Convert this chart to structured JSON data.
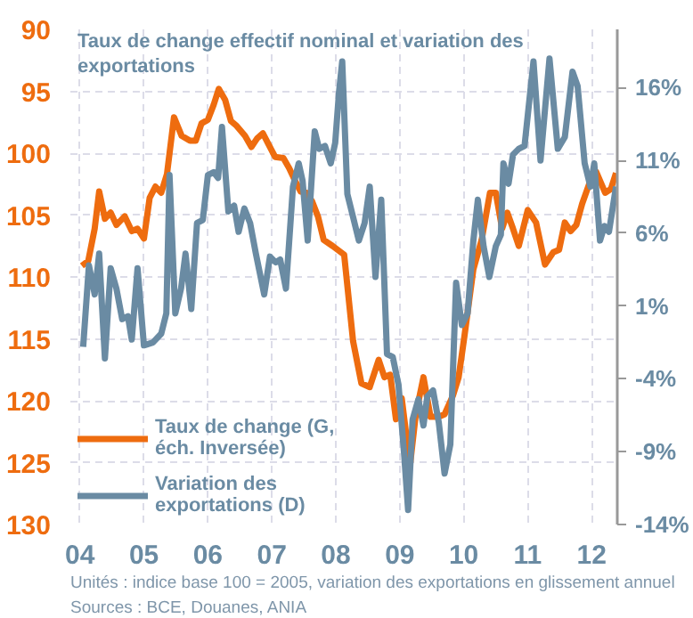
{
  "chart_data": {
    "type": "line",
    "title": "Taux de change effectif nominal et variation des exportations",
    "xlim": [
      2003.85,
      2012.4
    ],
    "xticks": [
      {
        "value": 2004,
        "label": "04"
      },
      {
        "value": 2005,
        "label": "05"
      },
      {
        "value": 2006,
        "label": "06"
      },
      {
        "value": 2007,
        "label": "07"
      },
      {
        "value": 2008,
        "label": "08"
      },
      {
        "value": 2009,
        "label": "09"
      },
      {
        "value": 2010,
        "label": "10"
      },
      {
        "value": 2011,
        "label": "11"
      },
      {
        "value": 2012,
        "label": "12"
      }
    ],
    "ylim": [
      130,
      90
    ],
    "yticks": [
      90,
      95,
      100,
      105,
      110,
      115,
      120,
      125,
      130
    ],
    "y2lim": [
      -14,
      20
    ],
    "y2ticks": [
      {
        "value": -14,
        "label": "-14%"
      },
      {
        "value": -9,
        "label": "-9%"
      },
      {
        "value": -4,
        "label": "-4%"
      },
      {
        "value": 1,
        "label": "1%"
      },
      {
        "value": 6,
        "label": "6%"
      },
      {
        "value": 11,
        "label": "11%"
      },
      {
        "value": 16,
        "label": "16%"
      }
    ],
    "grid": true,
    "legend": "bottom left",
    "series": [
      {
        "name": "Taux de change (G, éch. Inversée)",
        "color": "#ee6c0f",
        "x": [
          2004.03,
          2004.13,
          2004.23,
          2004.3,
          2004.39,
          2004.48,
          2004.57,
          2004.7,
          2004.81,
          2004.9,
          2005.0,
          2005.09,
          2005.18,
          2005.27,
          2005.36,
          2005.47,
          2005.59,
          2005.72,
          2005.81,
          2005.9,
          2006.0,
          2006.09,
          2006.17,
          2006.27,
          2006.36,
          2006.45,
          2006.58,
          2006.68,
          2006.77,
          2006.86,
          2006.95,
          2007.05,
          2007.18,
          2007.27,
          2007.36,
          2007.45,
          2007.54,
          2007.63,
          2007.72,
          2007.81,
          2007.95,
          2008.13,
          2008.27,
          2008.4,
          2008.53,
          2008.67,
          2008.76,
          2008.85,
          2008.94,
          2009.03,
          2009.16,
          2009.25,
          2009.37,
          2009.48,
          2009.61,
          2009.7,
          2009.83,
          2009.92,
          2010.01,
          2010.15,
          2010.28,
          2010.41,
          2010.5,
          2010.6,
          2010.68,
          2010.77,
          2010.86,
          2011.0,
          2011.13,
          2011.27,
          2011.4,
          2011.49,
          2011.58,
          2011.67,
          2011.76,
          2011.85,
          2011.98,
          2012.07,
          2012.21,
          2012.3,
          2012.38
        ],
        "values": [
          109.1,
          108.7,
          106.1,
          103.1,
          105.3,
          104.8,
          105.8,
          105.1,
          106.3,
          106.1,
          106.9,
          103.6,
          102.7,
          103.2,
          101.7,
          97.1,
          98.6,
          99.0,
          99.0,
          97.6,
          97.3,
          96.1,
          94.8,
          95.7,
          97.4,
          97.8,
          98.6,
          99.5,
          98.8,
          98.4,
          99.3,
          100.3,
          100.4,
          101.2,
          102.2,
          103.1,
          103.2,
          103.9,
          105.1,
          107.0,
          107.5,
          108.2,
          115.2,
          118.6,
          118.9,
          116.7,
          118.1,
          117.9,
          121.5,
          119.8,
          125.2,
          121.1,
          118.1,
          121.3,
          121.3,
          121.1,
          119.6,
          118.1,
          114.8,
          109.4,
          107.0,
          103.2,
          103.2,
          106.1,
          104.8,
          106.1,
          107.5,
          104.6,
          105.6,
          109.0,
          108.0,
          107.8,
          105.6,
          106.3,
          105.8,
          104.1,
          102.2,
          101.5,
          103.2,
          102.9,
          101.6
        ]
      },
      {
        "name": "Variation des exportations (D)",
        "color": "#6a8ba3",
        "axis": "y2",
        "x": [
          2004.05,
          2004.14,
          2004.23,
          2004.3,
          2004.39,
          2004.48,
          2004.57,
          2004.66,
          2004.75,
          2004.81,
          2004.9,
          2005.0,
          2005.14,
          2005.27,
          2005.35,
          2005.4,
          2005.49,
          2005.58,
          2005.65,
          2005.74,
          2005.83,
          2005.92,
          2006.0,
          2006.09,
          2006.16,
          2006.22,
          2006.32,
          2006.41,
          2006.48,
          2006.57,
          2006.66,
          2006.75,
          2006.88,
          2006.97,
          2007.06,
          2007.13,
          2007.22,
          2007.33,
          2007.42,
          2007.48,
          2007.56,
          2007.67,
          2007.74,
          2007.83,
          2007.92,
          2007.99,
          2008.05,
          2008.1,
          2008.18,
          2008.27,
          2008.36,
          2008.45,
          2008.53,
          2008.62,
          2008.71,
          2008.8,
          2008.89,
          2008.98,
          2009.07,
          2009.13,
          2009.2,
          2009.29,
          2009.37,
          2009.43,
          2009.52,
          2009.61,
          2009.7,
          2009.79,
          2009.88,
          2009.97,
          2010.06,
          2010.15,
          2010.22,
          2010.31,
          2010.4,
          2010.5,
          2010.58,
          2010.62,
          2010.7,
          2010.77,
          2010.86,
          2010.95,
          2011.09,
          2011.2,
          2011.34,
          2011.47,
          2011.58,
          2011.7,
          2011.78,
          2011.89,
          2011.98,
          2012.04,
          2012.13,
          2012.2,
          2012.27,
          2012.38
        ],
        "values": [
          -1.8,
          3.8,
          1.8,
          4.6,
          -2.6,
          3.6,
          2.2,
          0.1,
          0.3,
          -1.3,
          3.6,
          -1.7,
          -1.5,
          -0.9,
          0.5,
          10.0,
          0.5,
          2.2,
          4.6,
          0.8,
          6.7,
          6.9,
          10.0,
          10.2,
          9.8,
          13.3,
          7.5,
          7.9,
          6.1,
          7.7,
          6.7,
          4.6,
          1.8,
          4.4,
          4.0,
          4.2,
          2.2,
          9.2,
          10.8,
          9.6,
          5.5,
          13.0,
          11.8,
          12.0,
          10.8,
          12.2,
          15.7,
          17.8,
          8.7,
          7.1,
          5.5,
          6.7,
          9.2,
          3.0,
          8.3,
          -2.3,
          -2.5,
          -4.4,
          -9.3,
          -13.0,
          -6.8,
          -5.4,
          -7.2,
          -5.2,
          -4.8,
          -7.0,
          -10.5,
          -8.5,
          2.6,
          -0.3,
          0.5,
          5.5,
          8.3,
          5.1,
          3.0,
          5.1,
          5.9,
          10.8,
          9.4,
          11.4,
          11.8,
          12.0,
          17.8,
          11.0,
          18.0,
          11.8,
          12.6,
          17.1,
          16.1,
          10.8,
          9.2,
          10.8,
          5.5,
          6.5,
          6.1,
          9.2
        ]
      }
    ],
    "annotations": [
      "Unités : indice base 100 = 2005, variation des exportations en glissement annuel",
      "Sources : BCE, Douanes, ANIA"
    ]
  }
}
